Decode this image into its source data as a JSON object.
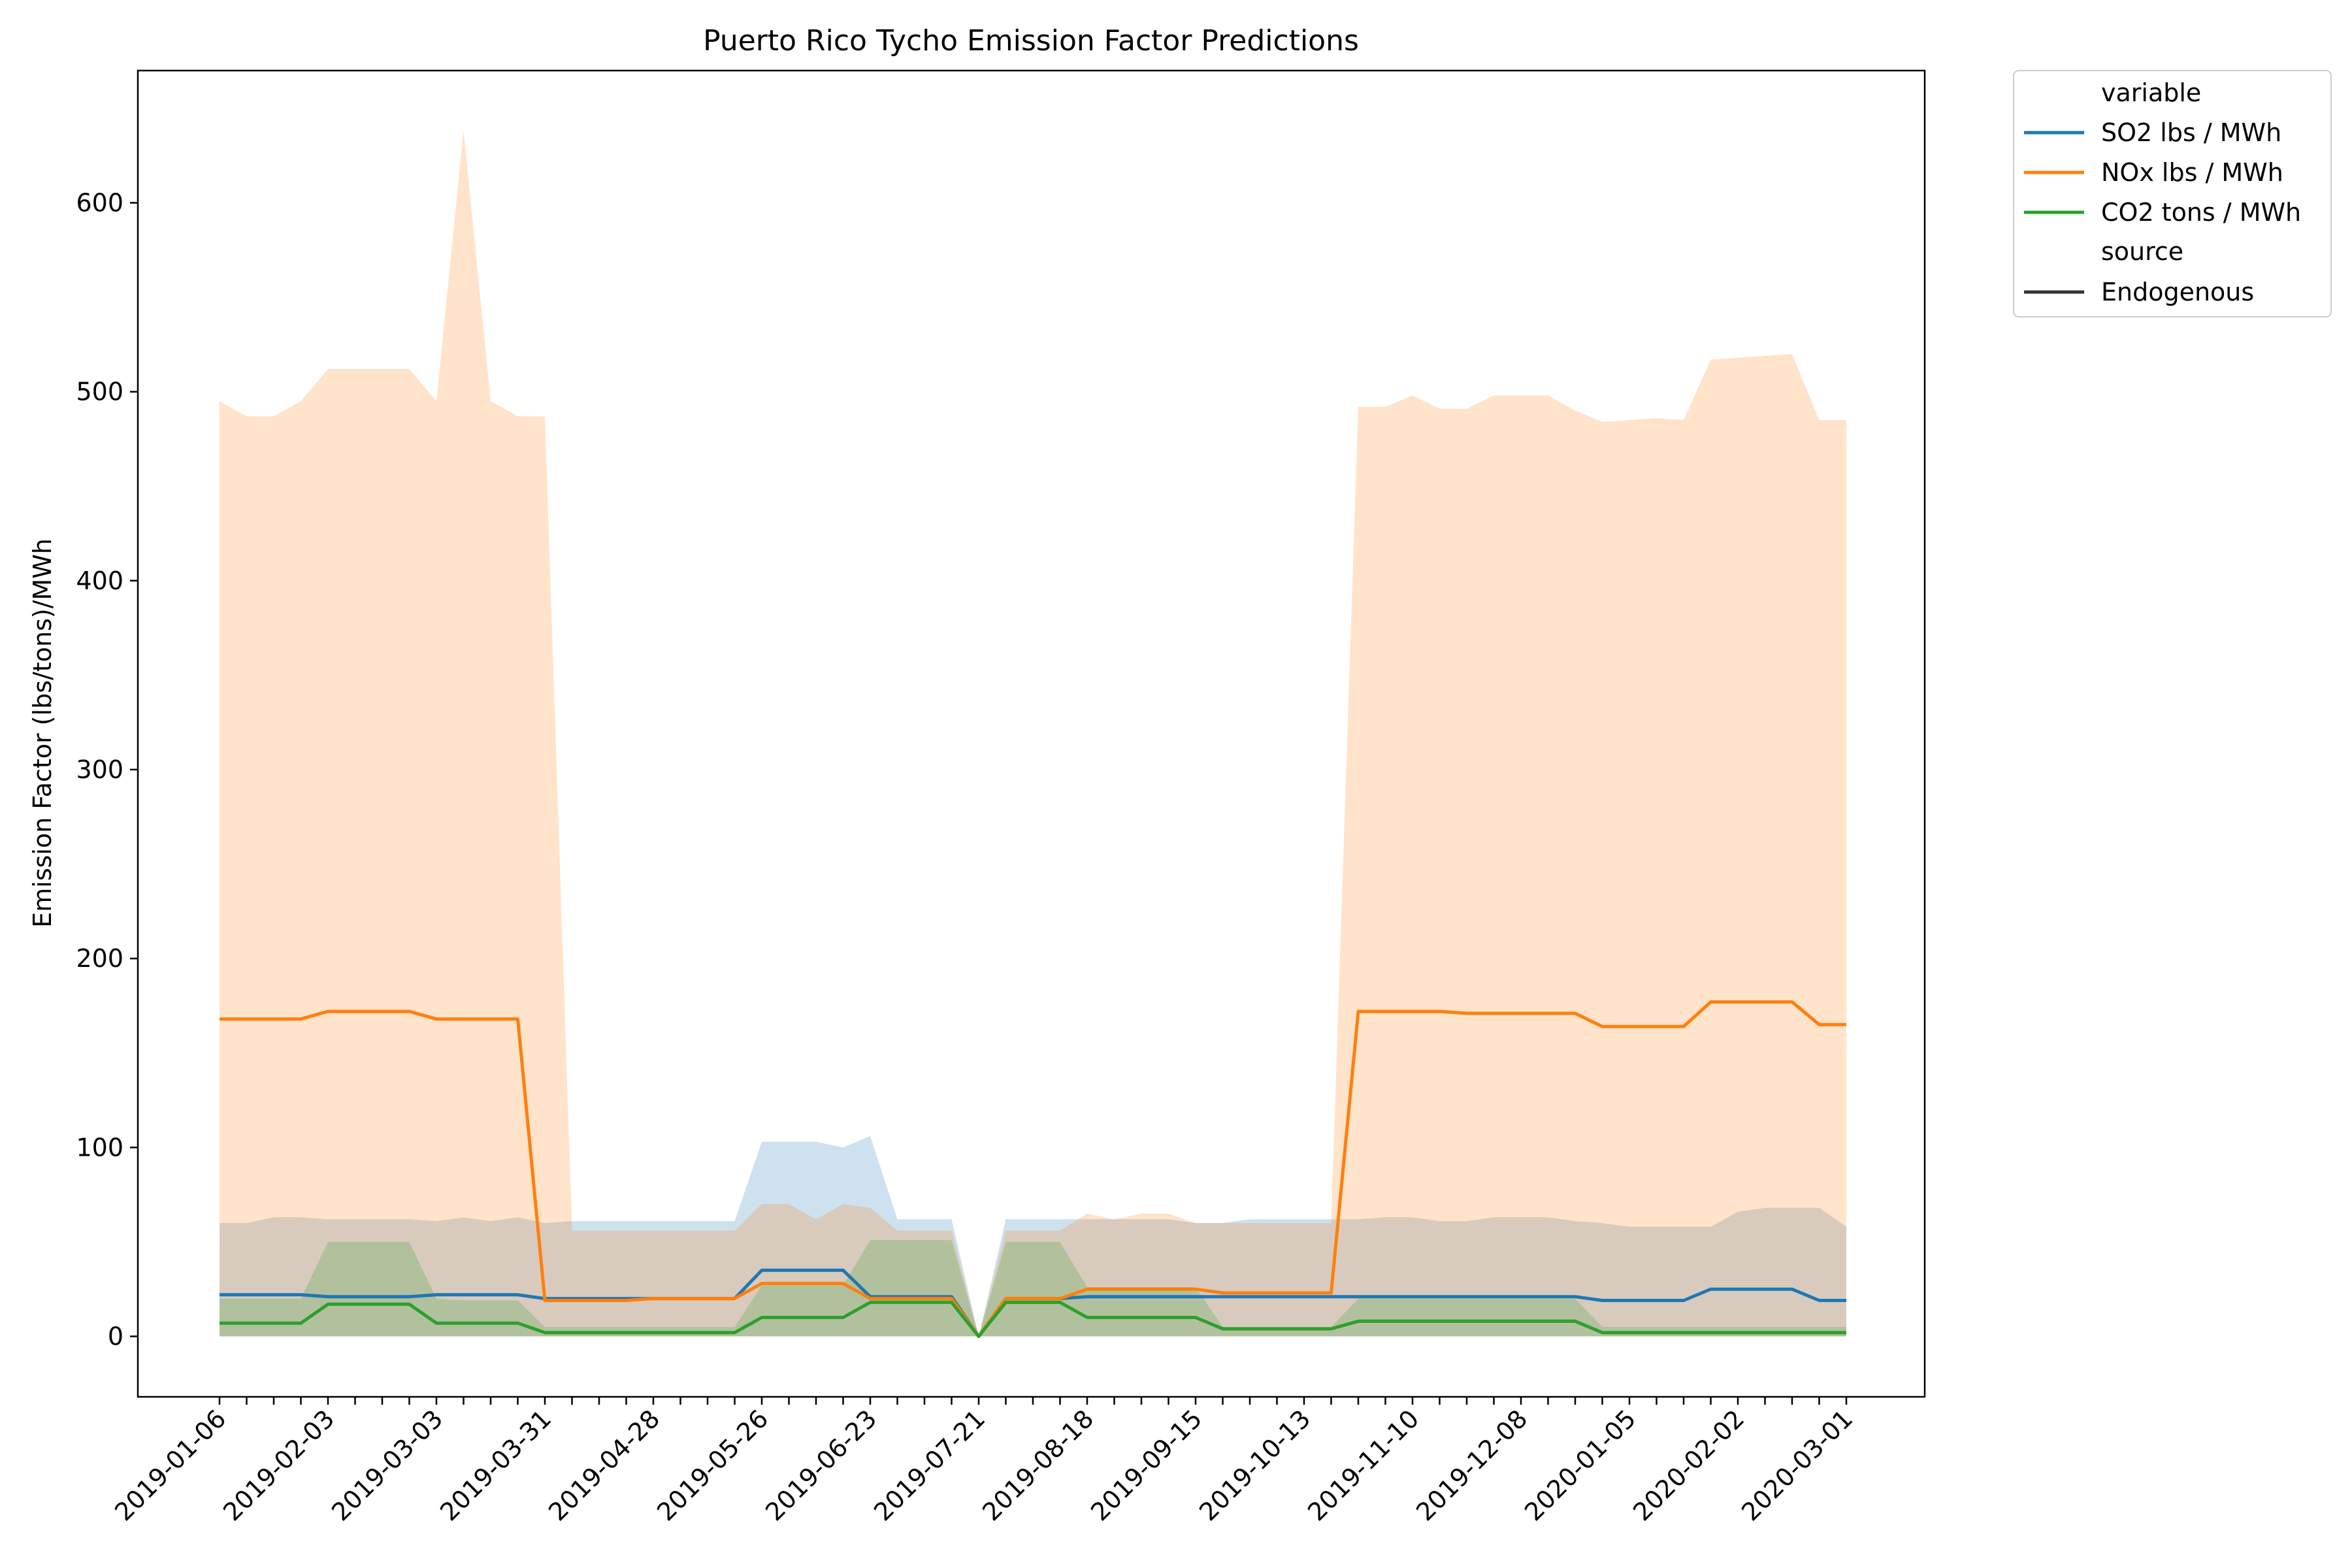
{
  "chart_data": {
    "type": "line",
    "title": "Puerto Rico Tycho Emission Factor Predictions",
    "xlabel": "",
    "ylabel": "Emission Factor (lbs/tons)/MWh",
    "ylim": [
      -32,
      670
    ],
    "yticks": [
      0,
      100,
      200,
      300,
      400,
      500,
      600
    ],
    "xtick_labels": [
      "2019-01-06",
      "2019-02-03",
      "2019-03-03",
      "2019-03-31",
      "2019-04-28",
      "2019-05-26",
      "2019-06-23",
      "2019-07-21",
      "2019-08-18",
      "2019-09-15",
      "2019-10-13",
      "2019-11-10",
      "2019-12-08",
      "2020-01-05",
      "2020-02-02",
      "2020-03-01"
    ],
    "x": [
      "2019-01-06",
      "2019-01-13",
      "2019-01-20",
      "2019-01-27",
      "2019-02-03",
      "2019-02-10",
      "2019-02-17",
      "2019-02-24",
      "2019-03-03",
      "2019-03-10",
      "2019-03-17",
      "2019-03-24",
      "2019-03-31",
      "2019-04-07",
      "2019-04-14",
      "2019-04-21",
      "2019-04-28",
      "2019-05-05",
      "2019-05-12",
      "2019-05-19",
      "2019-05-26",
      "2019-06-02",
      "2019-06-09",
      "2019-06-16",
      "2019-06-23",
      "2019-06-30",
      "2019-07-07",
      "2019-07-14",
      "2019-07-21",
      "2019-07-28",
      "2019-08-04",
      "2019-08-11",
      "2019-08-18",
      "2019-08-25",
      "2019-09-01",
      "2019-09-08",
      "2019-09-15",
      "2019-09-22",
      "2019-09-29",
      "2019-10-06",
      "2019-10-13",
      "2019-10-20",
      "2019-10-27",
      "2019-11-03",
      "2019-11-10",
      "2019-11-17",
      "2019-11-24",
      "2019-12-01",
      "2019-12-08",
      "2019-12-15",
      "2019-12-22",
      "2019-12-29",
      "2020-01-05",
      "2020-01-12",
      "2020-01-19",
      "2020-01-26",
      "2020-02-02",
      "2020-02-09",
      "2020-02-16",
      "2020-02-23",
      "2020-03-01"
    ],
    "series": [
      {
        "name": "SO2 lbs / MWh",
        "color": "#1f77b4",
        "values": [
          22,
          22,
          22,
          22,
          21,
          21,
          21,
          21,
          22,
          22,
          22,
          22,
          20,
          20,
          20,
          20,
          20,
          20,
          20,
          20,
          35,
          35,
          35,
          35,
          21,
          21,
          21,
          21,
          0,
          20,
          20,
          20,
          21,
          21,
          21,
          21,
          21,
          21,
          21,
          21,
          21,
          21,
          21,
          21,
          21,
          21,
          21,
          21,
          21,
          21,
          21,
          19,
          19,
          19,
          19,
          25,
          25,
          25,
          25,
          19,
          19
        ],
        "band_upper": [
          60,
          60,
          63,
          63,
          62,
          62,
          62,
          62,
          61,
          63,
          61,
          63,
          60,
          61,
          61,
          61,
          61,
          61,
          61,
          61,
          103,
          103,
          103,
          100,
          106,
          62,
          62,
          62,
          0,
          62,
          62,
          62,
          62,
          62,
          62,
          62,
          60,
          60,
          62,
          62,
          62,
          62,
          62,
          63,
          63,
          61,
          61,
          63,
          63,
          63,
          61,
          60,
          58,
          58,
          58,
          58,
          66,
          68,
          68,
          68,
          58
        ],
        "band_lower": [
          0,
          0,
          0,
          0,
          0,
          0,
          0,
          0,
          0,
          0,
          0,
          0,
          0,
          0,
          0,
          0,
          0,
          0,
          0,
          0,
          0,
          0,
          0,
          0,
          0,
          0,
          0,
          0,
          0,
          0,
          0,
          0,
          0,
          0,
          0,
          0,
          0,
          0,
          0,
          0,
          0,
          0,
          0,
          0,
          0,
          0,
          0,
          0,
          0,
          0,
          0,
          0,
          0,
          0,
          0,
          0,
          0,
          0,
          0,
          0,
          0
        ]
      },
      {
        "name": "NOx lbs / MWh",
        "color": "#ff7f0e",
        "values": [
          168,
          168,
          168,
          168,
          172,
          172,
          172,
          172,
          168,
          168,
          168,
          168,
          19,
          19,
          19,
          19,
          20,
          20,
          20,
          20,
          28,
          28,
          28,
          28,
          20,
          20,
          20,
          20,
          0,
          20,
          20,
          20,
          25,
          25,
          25,
          25,
          25,
          23,
          23,
          23,
          23,
          23,
          172,
          172,
          172,
          172,
          171,
          171,
          171,
          171,
          171,
          164,
          164,
          164,
          164,
          177,
          177,
          177,
          177,
          165,
          165
        ],
        "band_upper": [
          495,
          487,
          487,
          495,
          512,
          512,
          512,
          512,
          495,
          638,
          495,
          487,
          487,
          56,
          56,
          56,
          56,
          56,
          56,
          56,
          70,
          70,
          62,
          70,
          68,
          56,
          56,
          56,
          0,
          56,
          56,
          56,
          65,
          62,
          65,
          65,
          60,
          60,
          60,
          60,
          60,
          60,
          492,
          492,
          498,
          491,
          491,
          498,
          498,
          498,
          490,
          484,
          485,
          486,
          485,
          517,
          518,
          519,
          520,
          485,
          485
        ],
        "band_lower": [
          0,
          0,
          0,
          0,
          0,
          0,
          0,
          0,
          0,
          0,
          0,
          0,
          0,
          0,
          0,
          0,
          0,
          0,
          0,
          0,
          0,
          0,
          0,
          0,
          0,
          0,
          0,
          0,
          0,
          0,
          0,
          0,
          0,
          0,
          0,
          0,
          0,
          0,
          0,
          0,
          0,
          0,
          0,
          0,
          0,
          0,
          0,
          0,
          0,
          0,
          0,
          0,
          0,
          0,
          0,
          0,
          0,
          0,
          0,
          0,
          0
        ]
      },
      {
        "name": "CO2 tons / MWh",
        "color": "#2ca02c",
        "values": [
          7,
          7,
          7,
          7,
          17,
          17,
          17,
          17,
          7,
          7,
          7,
          7,
          2,
          2,
          2,
          2,
          2,
          2,
          2,
          2,
          10,
          10,
          10,
          10,
          18,
          18,
          18,
          18,
          0,
          18,
          18,
          18,
          10,
          10,
          10,
          10,
          10,
          4,
          4,
          4,
          4,
          4,
          8,
          8,
          8,
          8,
          8,
          8,
          8,
          8,
          8,
          2,
          2,
          2,
          2,
          2,
          2,
          2,
          2,
          2,
          2
        ],
        "band_upper": [
          20,
          20,
          20,
          20,
          50,
          50,
          50,
          50,
          20,
          19,
          19,
          19,
          5,
          5,
          5,
          5,
          5,
          5,
          5,
          5,
          27,
          27,
          27,
          27,
          51,
          51,
          51,
          51,
          0,
          50,
          50,
          50,
          26,
          26,
          26,
          26,
          26,
          5,
          5,
          5,
          5,
          5,
          20,
          20,
          20,
          20,
          20,
          20,
          20,
          20,
          20,
          5,
          5,
          5,
          5,
          5,
          5,
          5,
          5,
          5,
          5
        ],
        "band_lower": [
          0,
          0,
          0,
          0,
          0,
          0,
          0,
          0,
          0,
          0,
          0,
          0,
          0,
          0,
          0,
          0,
          0,
          0,
          0,
          0,
          0,
          0,
          0,
          0,
          0,
          0,
          0,
          0,
          0,
          0,
          0,
          0,
          0,
          0,
          0,
          0,
          0,
          0,
          0,
          0,
          0,
          0,
          0,
          0,
          0,
          0,
          0,
          0,
          0,
          0,
          0,
          0,
          0,
          0,
          0,
          0,
          0,
          0,
          0,
          0,
          0
        ]
      }
    ],
    "legend": {
      "placement": "outside-top-right",
      "title_variable": "variable",
      "title_source": "source",
      "source_entry": "Endogenous",
      "source_color": "#333333"
    },
    "grid": false
  }
}
